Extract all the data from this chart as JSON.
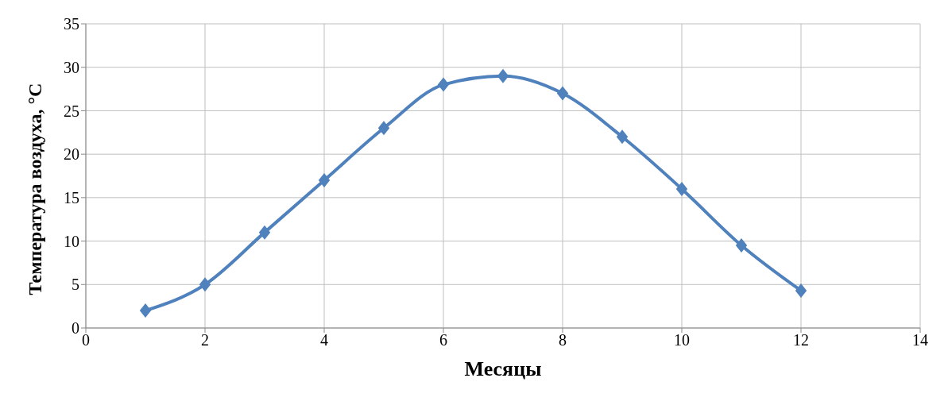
{
  "chart_data": {
    "type": "line",
    "xlabel": "Месяцы",
    "ylabel": "Температура воздуха, °С",
    "x": [
      1,
      2,
      3,
      4,
      5,
      6,
      7,
      8,
      9,
      10,
      11,
      12
    ],
    "series": [
      {
        "color": "#4f81bd",
        "values": [
          2,
          5,
          11,
          17,
          23,
          28,
          29,
          27,
          22,
          16,
          9.5,
          4.3
        ]
      }
    ],
    "xlim": [
      0,
      14
    ],
    "xticks": [
      0,
      2,
      4,
      6,
      8,
      10,
      12,
      14
    ],
    "ylim": [
      0,
      35
    ],
    "yticks": [
      0,
      5,
      10,
      15,
      20,
      25,
      30,
      35
    ],
    "grid": true,
    "marker": "diamond",
    "line_style": "solid",
    "legend": false
  }
}
